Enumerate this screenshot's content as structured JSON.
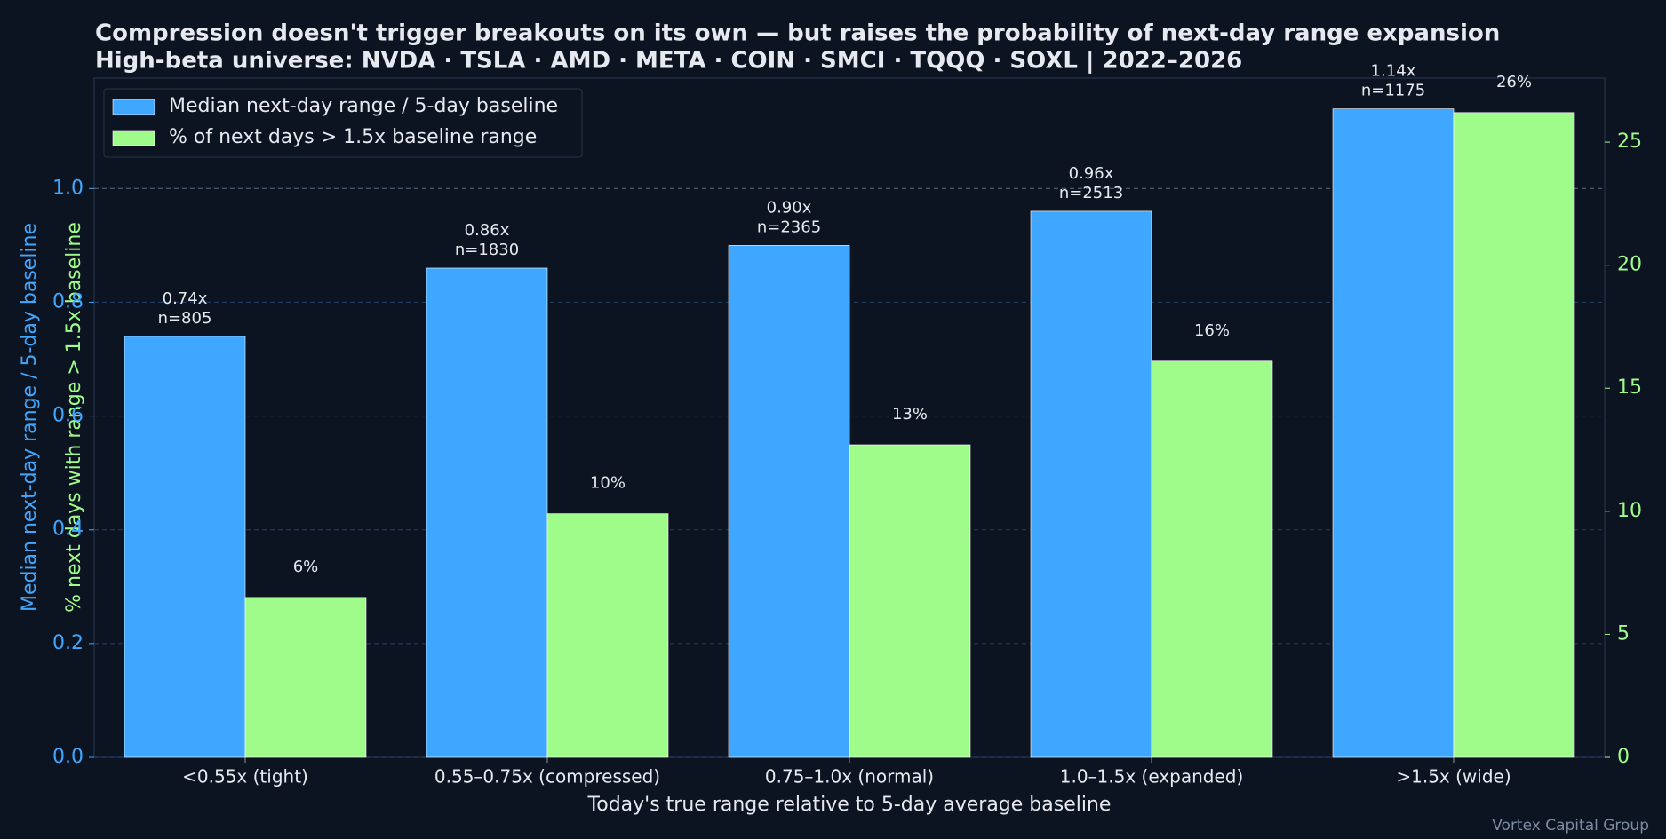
{
  "chart_data": {
    "type": "bar",
    "title": "Compression doesn't trigger breakouts on its own — but raises the probability of next-day range expansion",
    "subtitle": "High-beta universe: NVDA · TSLA · AMD · META · COIN · SMCI · TQQQ · SOXL  |  2022–2026",
    "x_label": "Today's true range relative to 5-day average baseline",
    "y_label": "Median next-day range / 5-day baseline",
    "y2_label": "% next days with range > 1.5x baseline",
    "categories": [
      "<0.55x (tight)",
      "0.55–0.75x (compressed)",
      "0.75–1.0x (normal)",
      "1.0–1.5x (expanded)",
      ">1.5x (wide)"
    ],
    "series": [
      {
        "name": "Median next-day range / 5-day baseline",
        "color": "#3fa7ff",
        "axis": "y",
        "values": [
          0.74,
          0.86,
          0.9,
          0.96,
          1.14
        ],
        "value_labels": [
          "0.74x",
          "0.86x",
          "0.90x",
          "0.96x",
          "1.14x"
        ],
        "sample_labels": [
          "n=805",
          "n=1830",
          "n=2365",
          "n=2513",
          "n=1175"
        ]
      },
      {
        "name": "% of next days > 1.5x baseline range",
        "color": "#a0fc8a",
        "axis": "y2",
        "values": [
          6.5,
          9.9,
          12.7,
          16.1,
          26.2
        ],
        "value_labels": [
          "6%",
          "10%",
          "13%",
          "16%",
          "26%"
        ]
      }
    ],
    "ylim": [
      0,
      1.194
    ],
    "yticks": [
      {
        "value": 0,
        "label": "0.0"
      },
      {
        "value": 0.2,
        "label": "0.2"
      },
      {
        "value": 0.4,
        "label": "0.4"
      },
      {
        "value": 0.6,
        "label": "0.6"
      },
      {
        "value": 0.8,
        "label": "0.8"
      },
      {
        "value": 1.0,
        "label": "1.0"
      }
    ],
    "y2lim": [
      0,
      27.6
    ],
    "y2ticks": [
      0,
      5,
      10,
      15,
      20,
      25
    ],
    "grid": true,
    "legend": "upper left",
    "footer": "Vortex Capital Group"
  }
}
